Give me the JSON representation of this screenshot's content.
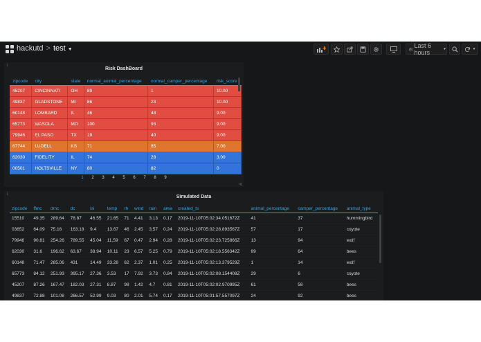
{
  "breadcrumb": {
    "folder": "hackutd",
    "separator": ">",
    "dashboard": "test"
  },
  "toolbar": {
    "time_range": "Last 6 hours"
  },
  "icons": {
    "dashboard": "grid-logo-icon",
    "add_panel": "add-panel-icon",
    "star": "star-icon",
    "share": "share-icon",
    "save": "save-icon",
    "settings": "gear-icon",
    "tv": "tv-mode-icon",
    "clock": "clock-icon",
    "zoom": "search-icon",
    "refresh": "refresh-icon"
  },
  "risk_panel": {
    "title": "Risk DashBoard",
    "columns": [
      "zipcode",
      "city",
      "state",
      "normal_animal_percentage",
      "normal_camper_percentage",
      "risk_score"
    ],
    "rows": [
      {
        "color": "red",
        "cells": [
          "45207",
          "CINCINNATI",
          "OH",
          "89",
          "1",
          "10.00"
        ]
      },
      {
        "color": "red",
        "cells": [
          "49837",
          "GLADSTONE",
          "MI",
          "86",
          "23",
          "10.00"
        ]
      },
      {
        "color": "red",
        "cells": [
          "60148",
          "LOMBARD",
          "IL",
          "46",
          "48",
          "9.00"
        ]
      },
      {
        "color": "red",
        "cells": [
          "65773",
          "WASOLA",
          "MO",
          "100",
          "93",
          "9.00"
        ]
      },
      {
        "color": "red",
        "cells": [
          "79946",
          "EL PASO",
          "TX",
          "19",
          "40",
          "9.00"
        ]
      },
      {
        "color": "orange",
        "cells": [
          "67744",
          "LUDELL",
          "KS",
          "71",
          "85",
          "7.00"
        ]
      },
      {
        "color": "blue",
        "cells": [
          "62030",
          "FIDELITY",
          "IL",
          "74",
          "28",
          "3.00"
        ]
      },
      {
        "color": "blue",
        "cells": [
          "00501",
          "HOLTSVILLE",
          "NY",
          "80",
          "82",
          "0"
        ]
      }
    ],
    "pages": [
      "1",
      "2",
      "3",
      "4",
      "5",
      "6",
      "7",
      "8",
      "9"
    ],
    "active_page": "1",
    "colors": {
      "red": "#e24d42",
      "orange": "#e0752d",
      "blue": "#3274d9"
    }
  },
  "sim_panel": {
    "title": "Simulated Data",
    "columns": [
      "zipcode",
      "ffmc",
      "dmc",
      "dc",
      "isi",
      "temp",
      "rh",
      "wind",
      "rain",
      "area",
      "created_ts",
      "animal_percentage",
      "camper_percentage",
      "animal_type"
    ],
    "rows": [
      [
        "15510",
        "49.35",
        "289.64",
        "78.87",
        "46.55",
        "21.65",
        "71",
        "4.41",
        "3.13",
        "0.17",
        "2019-11-10T05:02:34.051672Z",
        "41",
        "37",
        "hummingbird"
      ],
      [
        "03852",
        "64.09",
        "75.16",
        "163.18",
        "9.4",
        "13.67",
        "46",
        "2.45",
        "3.57",
        "0.24",
        "2019-11-10T05:02:28.893567Z",
        "57",
        "17",
        "coyote"
      ],
      [
        "79946",
        "90.81",
        "254.26",
        "789.55",
        "45.04",
        "11.59",
        "67",
        "0.47",
        "2.94",
        "0.28",
        "2019-11-10T05:02:23.725866Z",
        "13",
        "94",
        "wolf"
      ],
      [
        "62030",
        "31.6",
        "196.62",
        "63.67",
        "38.94",
        "10.11",
        "23",
        "6.57",
        "5.25",
        "0.79",
        "2019-11-10T05:02:18.556342Z",
        "99",
        "64",
        "bees"
      ],
      [
        "60148",
        "71.47",
        "285.06",
        "431",
        "14.49",
        "33.28",
        "62",
        "2.37",
        "1.01",
        "0.25",
        "2019-11-10T05:02:13.379529Z",
        "1",
        "14",
        "wolf"
      ],
      [
        "65773",
        "84.12",
        "251.93",
        "395.17",
        "27.36",
        "3.53",
        "17",
        "7.92",
        "3.73",
        "0.84",
        "2019-11-10T05:02:08.154408Z",
        "29",
        "6",
        "coyote"
      ],
      [
        "45207",
        "87.26",
        "167.47",
        "182.03",
        "27.31",
        "8.87",
        "98",
        "1.42",
        "4.7",
        "0.81",
        "2019-11-10T05:02:02.970995Z",
        "61",
        "58",
        "bees"
      ],
      [
        "49837",
        "72.88",
        "101.08",
        "266.57",
        "52.99",
        "9.03",
        "80",
        "2.01",
        "5.74",
        "0.17",
        "2019-11-10T05:01:57.557097Z",
        "24",
        "92",
        "bees"
      ]
    ]
  }
}
